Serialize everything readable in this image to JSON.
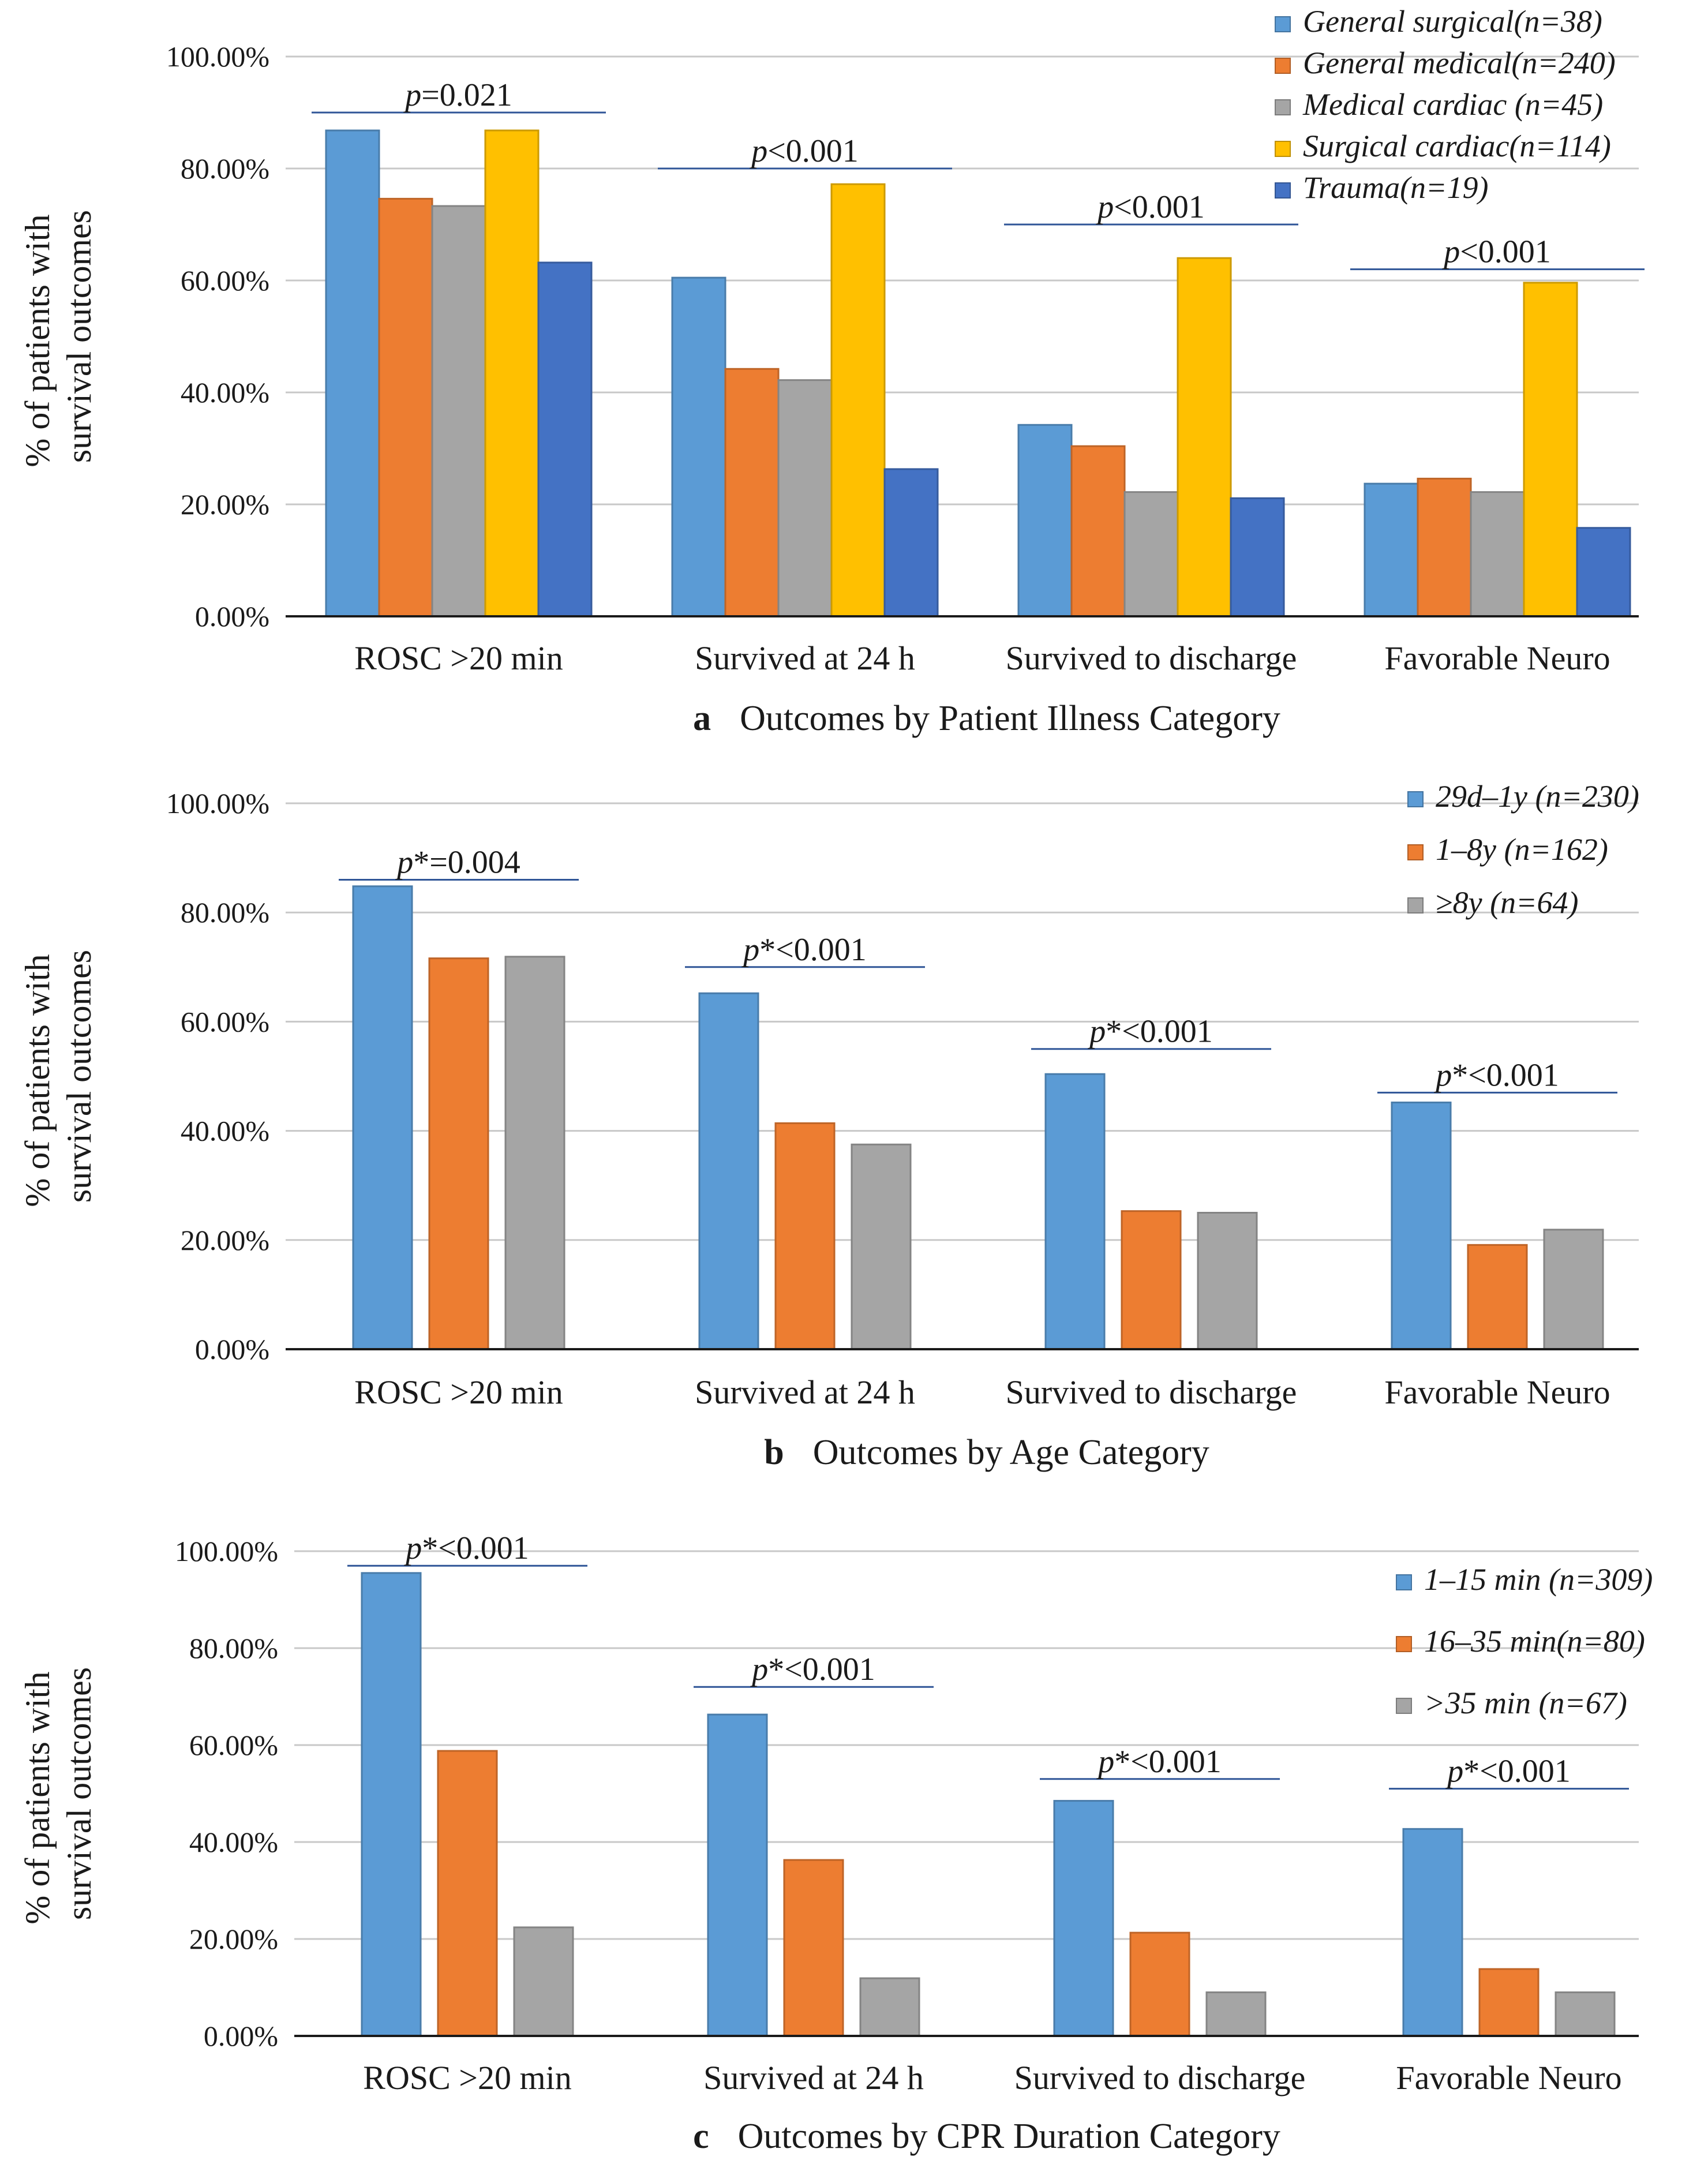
{
  "chart_data": [
    {
      "type": "bar",
      "panel": "a",
      "title": "Outcomes by Patient Illness Category",
      "ylabel": "% of patients with  survival outcomes",
      "ylim": [
        0,
        100
      ],
      "yticks": [
        "0.00%",
        "20.00%",
        "40.00%",
        "60.00%",
        "80.00%",
        "100.00%"
      ],
      "categories": [
        "ROSC >20 min",
        "Survived at 24 h",
        "Survived to discharge",
        "Favorable Neuro"
      ],
      "legend_position": "top-right",
      "series": [
        {
          "name": "General surgical(n=38)",
          "color": "#5B9BD5",
          "values": [
            86.8,
            60.5,
            34.2,
            23.7
          ]
        },
        {
          "name": "General medical(n=240)",
          "color": "#ED7D31",
          "values": [
            74.6,
            44.2,
            30.4,
            24.6
          ]
        },
        {
          "name": "Medical cardiac (n=45)",
          "color": "#A5A5A5",
          "values": [
            73.3,
            42.2,
            22.2,
            22.2
          ]
        },
        {
          "name": "Surgical cardiac(n=114)",
          "color": "#FFC000",
          "values": [
            86.8,
            77.2,
            64.0,
            59.6
          ]
        },
        {
          "name": "Trauma(n=19)",
          "color": "#4472C4",
          "values": [
            63.2,
            26.3,
            21.1,
            15.8
          ]
        }
      ],
      "annotations": [
        {
          "prefix": "p",
          "text": "=0.021",
          "level": 90
        },
        {
          "prefix": "p",
          "text": "<0.001",
          "level": 80
        },
        {
          "prefix": "p",
          "text": "<0.001",
          "level": 70
        },
        {
          "prefix": "p",
          "text": "<0.001",
          "level": 62
        }
      ]
    },
    {
      "type": "bar",
      "panel": "b",
      "title": "Outcomes by Age Category",
      "ylabel": "% of patients with  survival outcomes",
      "ylim": [
        0,
        100
      ],
      "yticks": [
        "0.00%",
        "20.00%",
        "40.00%",
        "60.00%",
        "80.00%",
        "100.00%"
      ],
      "categories": [
        "ROSC >20 min",
        "Survived at 24 h",
        "Survived to discharge",
        "Favorable Neuro"
      ],
      "legend_position": "top-right",
      "series": [
        {
          "name": "29d–1y (n=230)",
          "color": "#5B9BD5",
          "values": [
            84.8,
            65.2,
            50.4,
            45.2
          ]
        },
        {
          "name": "1–8y (n=162)",
          "color": "#ED7D31",
          "values": [
            71.6,
            41.4,
            25.3,
            19.1
          ]
        },
        {
          "name": "≥8y (n=64)",
          "color": "#A5A5A5",
          "values": [
            71.9,
            37.5,
            25.0,
            21.9
          ]
        }
      ],
      "annotations": [
        {
          "prefix": "p",
          "text": "*=0.004",
          "level": 86
        },
        {
          "prefix": "p",
          "text": "*<0.001",
          "level": 70
        },
        {
          "prefix": "p",
          "text": "*<0.001",
          "level": 55
        },
        {
          "prefix": "p",
          "text": "*<0.001",
          "level": 47
        }
      ]
    },
    {
      "type": "bar",
      "panel": "c",
      "title": "Outcomes by CPR Duration Category",
      "ylabel": "% of patients with  survival outcomes",
      "ylim": [
        0,
        100
      ],
      "yticks": [
        "0.00%",
        "20.00%",
        "40.00%",
        "60.00%",
        "80.00%",
        "100.00%"
      ],
      "categories": [
        "ROSC >20 min",
        "Survived at 24 h",
        "Survived to discharge",
        "Favorable Neuro"
      ],
      "legend_position": "top-right",
      "series": [
        {
          "name": "1–15 min (n=309)",
          "color": "#5B9BD5",
          "values": [
            95.5,
            66.3,
            48.5,
            42.7
          ]
        },
        {
          "name": "16–35 min(n=80)",
          "color": "#ED7D31",
          "values": [
            58.8,
            36.3,
            21.3,
            13.8
          ]
        },
        {
          "name": " >35 min (n=67)",
          "color": "#A5A5A5",
          "values": [
            22.4,
            11.9,
            9.0,
            9.0
          ]
        }
      ],
      "annotations": [
        {
          "prefix": "p",
          "text": "*<0.001",
          "level": 97
        },
        {
          "prefix": "p",
          "text": "*<0.001",
          "level": 72
        },
        {
          "prefix": "p",
          "text": "*<0.001",
          "level": 53
        },
        {
          "prefix": "p",
          "text": "*<0.001",
          "level": 51
        }
      ]
    }
  ]
}
